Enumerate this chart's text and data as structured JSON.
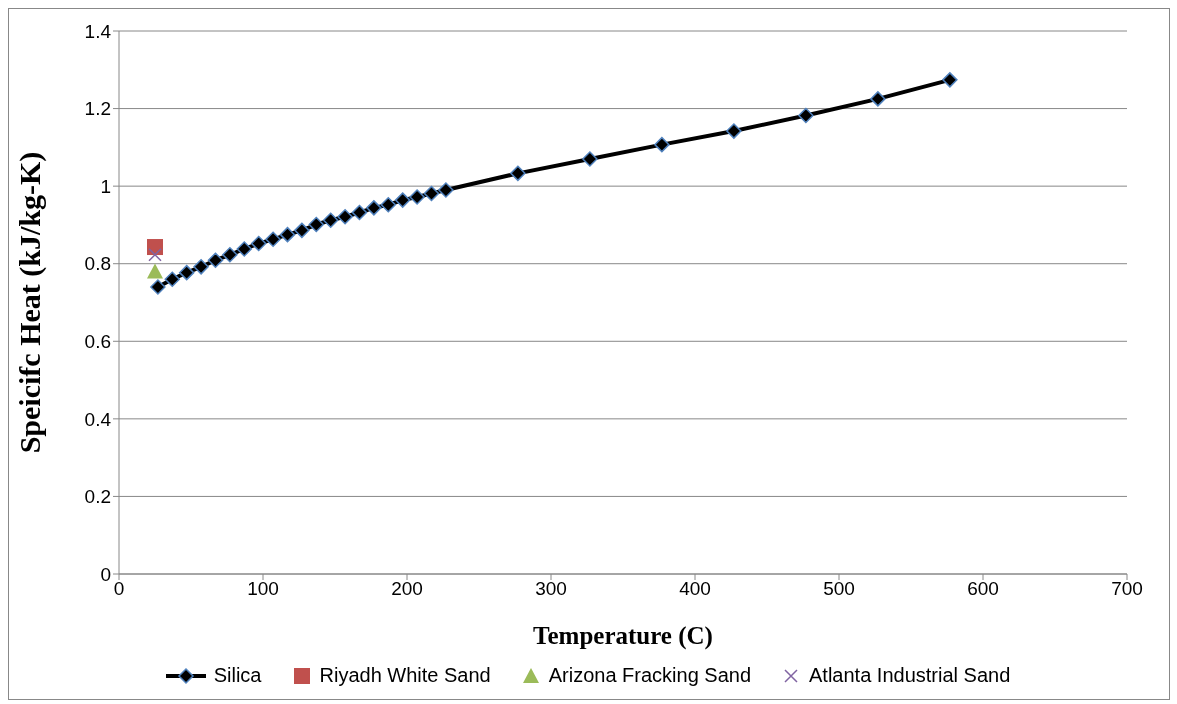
{
  "chart_data": {
    "type": "line",
    "xlabel": "Temperature (C)",
    "ylabel": "Speicifc Heat (kJ/kg-K)",
    "xlim": [
      0,
      700
    ],
    "xticks": [
      0,
      100,
      200,
      300,
      400,
      500,
      600,
      700
    ],
    "ylim": [
      0,
      1.4
    ],
    "yticks": [
      0,
      0.2,
      0.4,
      0.6,
      0.8,
      1,
      1.2,
      1.4
    ],
    "grid": "y",
    "legend": "bottom",
    "line_style": "solid",
    "series": [
      {
        "name": "Silica",
        "marker": "diamond",
        "color": "#000000",
        "x": [
          27,
          37,
          47,
          57,
          67,
          77,
          87,
          97,
          107,
          117,
          127,
          137,
          147,
          157,
          167,
          177,
          187,
          197,
          207,
          217,
          227,
          277,
          327,
          377,
          427,
          477,
          527,
          577
        ],
        "values": [
          0.74,
          0.76,
          0.777,
          0.792,
          0.809,
          0.823,
          0.838,
          0.852,
          0.863,
          0.875,
          0.886,
          0.901,
          0.912,
          0.921,
          0.932,
          0.944,
          0.952,
          0.964,
          0.972,
          0.981,
          0.99,
          1.033,
          1.07,
          1.107,
          1.142,
          1.182,
          1.225,
          1.274
        ]
      },
      {
        "name": "Riyadh White Sand",
        "type": "scatter",
        "marker": "square",
        "color": "#c0504d",
        "x": [
          25
        ],
        "values": [
          0.843
        ]
      },
      {
        "name": "Arizona Fracking Sand",
        "type": "scatter",
        "marker": "triangle",
        "color": "#9bbb59",
        "x": [
          25
        ],
        "values": [
          0.78
        ]
      },
      {
        "name": "Atlanta Industrial Sand",
        "type": "scatter",
        "marker": "cross",
        "color": "#8064a2",
        "x": [
          25
        ],
        "values": [
          0.823
        ]
      }
    ]
  }
}
